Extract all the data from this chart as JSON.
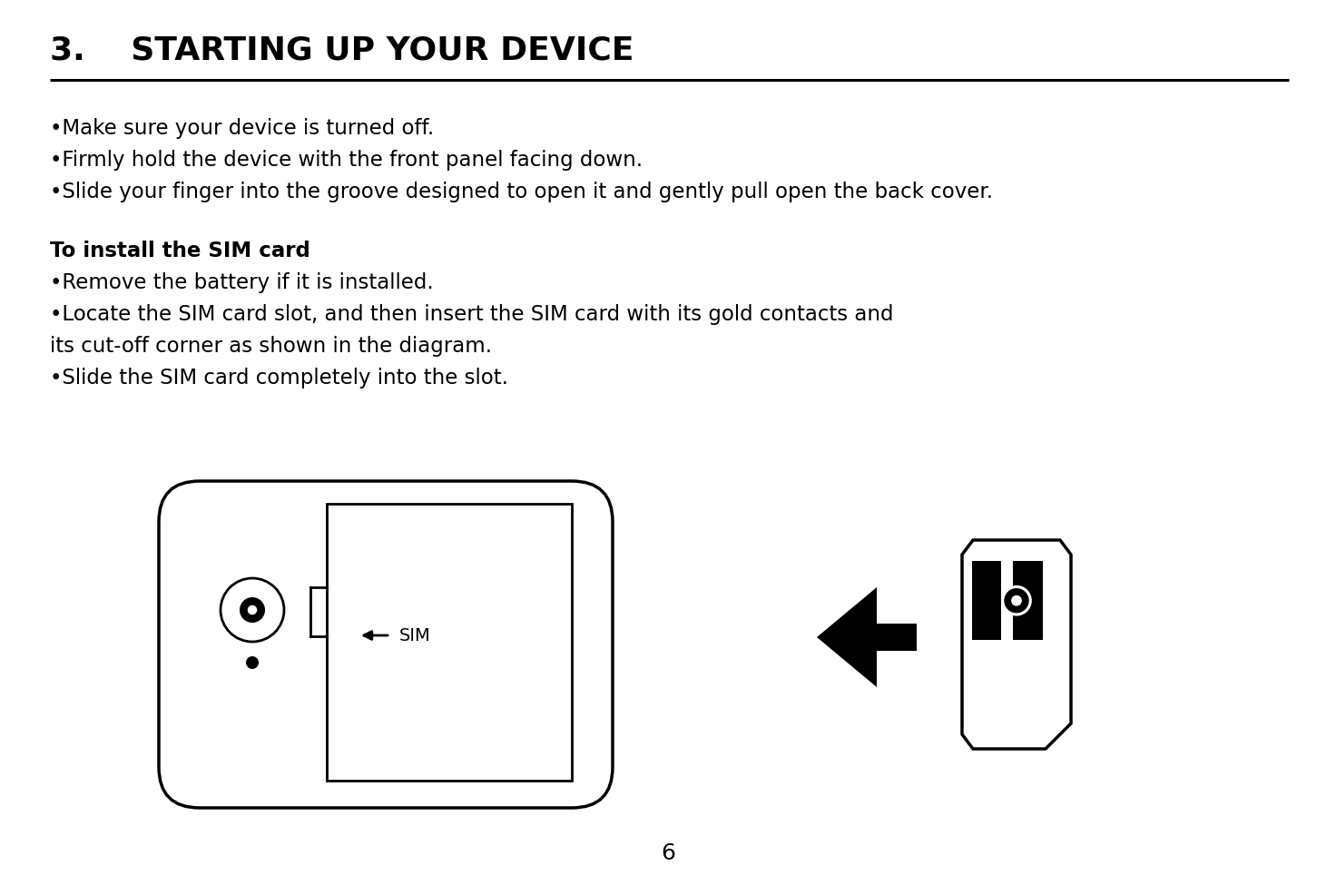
{
  "title": "3.    STARTING UP YOUR DEVICE",
  "title_fontsize": 26,
  "bg_color": "#ffffff",
  "text_color": "#000000",
  "line1": "•Make sure your device is turned off.",
  "line2": "•Firmly hold the device with the front panel facing down.",
  "line3": "•Slide your finger into the groove designed to open it and gently pull open the back cover.",
  "subheading": "To install the SIM card",
  "bullet1": "•Remove the battery if it is installed.",
  "bullet2a": "•Locate the SIM card slot, and then insert the SIM card with its gold contacts and",
  "bullet2b": "its cut-off corner as shown in the diagram.",
  "bullet3": "•Slide the SIM card completely into the slot.",
  "page_number": "6",
  "font_size": 16.5
}
